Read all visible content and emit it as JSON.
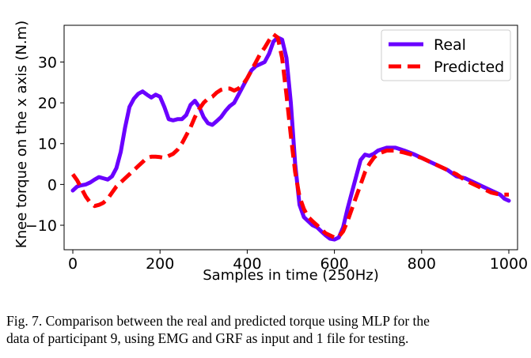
{
  "chart_data": {
    "type": "line",
    "title": "",
    "xlabel": "Samples in time (250Hz)",
    "ylabel": "Knee torque on the x axis (N.m)",
    "xlim": [
      -20,
      1020
    ],
    "ylim": [
      -16,
      39
    ],
    "xticks": [
      0,
      200,
      400,
      600,
      800,
      1000
    ],
    "yticks": [
      -10,
      0,
      10,
      20,
      30
    ],
    "legend_position": "top-right",
    "series": [
      {
        "name": "Real",
        "color": "#6a00ff",
        "style": "solid",
        "x": [
          0,
          10,
          20,
          30,
          40,
          50,
          60,
          70,
          80,
          90,
          100,
          110,
          120,
          130,
          140,
          150,
          160,
          170,
          180,
          190,
          200,
          210,
          220,
          230,
          240,
          250,
          260,
          270,
          280,
          290,
          300,
          310,
          320,
          330,
          340,
          350,
          360,
          370,
          380,
          390,
          400,
          410,
          420,
          430,
          440,
          450,
          460,
          470,
          480,
          490,
          500,
          510,
          520,
          530,
          540,
          550,
          560,
          570,
          580,
          590,
          600,
          610,
          620,
          630,
          640,
          650,
          660,
          670,
          680,
          690,
          700,
          720,
          740,
          760,
          780,
          800,
          820,
          840,
          860,
          880,
          900,
          920,
          940,
          960,
          980,
          990,
          1000
        ],
        "y": [
          -1.5,
          -0.5,
          -0.2,
          0,
          0.5,
          1.2,
          1.8,
          1.5,
          1.2,
          2,
          4,
          8,
          14,
          19,
          21,
          22.2,
          22.8,
          22,
          21.3,
          22,
          21.5,
          19,
          16,
          15.7,
          16,
          16,
          17,
          19.5,
          20.5,
          19,
          16.5,
          15,
          14.6,
          15.5,
          16.5,
          18,
          19.2,
          20,
          22,
          24,
          26,
          28,
          29,
          29.5,
          30,
          32,
          35,
          36,
          35.5,
          31,
          20,
          5,
          -5,
          -8,
          -9,
          -10,
          -10.5,
          -11.5,
          -12.5,
          -13.3,
          -13.5,
          -13,
          -10.5,
          -6,
          -2,
          2,
          6,
          7.3,
          7,
          7.5,
          8.3,
          9,
          9,
          8.3,
          7.5,
          6.5,
          5.5,
          4.5,
          3.5,
          2,
          1.5,
          0.5,
          -0.5,
          -1.5,
          -2.5,
          -3.5,
          -4
        ]
      },
      {
        "name": "Predicted",
        "color": "#ff0000",
        "style": "dashed",
        "x": [
          0,
          10,
          20,
          30,
          40,
          50,
          60,
          70,
          80,
          90,
          100,
          110,
          120,
          130,
          140,
          150,
          160,
          170,
          180,
          190,
          200,
          210,
          220,
          230,
          240,
          250,
          260,
          270,
          280,
          290,
          300,
          310,
          320,
          330,
          340,
          350,
          360,
          370,
          380,
          390,
          400,
          410,
          420,
          430,
          440,
          450,
          460,
          470,
          480,
          490,
          500,
          510,
          520,
          530,
          540,
          550,
          560,
          570,
          580,
          590,
          600,
          610,
          620,
          630,
          640,
          650,
          660,
          670,
          680,
          690,
          700,
          720,
          740,
          760,
          780,
          800,
          820,
          840,
          860,
          880,
          900,
          920,
          940,
          960,
          980,
          1000
        ],
        "y": [
          2.5,
          1,
          -1,
          -3,
          -4.5,
          -5.3,
          -5,
          -4.5,
          -3.5,
          -2,
          -0.5,
          0.5,
          1.5,
          2.5,
          3.5,
          4.5,
          5.5,
          6.5,
          6.8,
          6.8,
          6.7,
          6.5,
          7,
          7.5,
          8.5,
          10,
          12,
          14,
          16.5,
          18.5,
          20,
          21,
          21.5,
          22.5,
          23.2,
          23.5,
          23.5,
          23,
          23.5,
          24.5,
          26,
          28,
          30,
          32,
          33.5,
          35.3,
          36.8,
          36,
          31,
          22,
          12,
          3,
          -3,
          -6,
          -8,
          -9,
          -10,
          -11,
          -12,
          -12.5,
          -13,
          -12.8,
          -11.5,
          -9,
          -6,
          -3,
          0,
          3,
          5,
          6.5,
          7.5,
          8.3,
          8.3,
          7.8,
          7.2,
          6.5,
          5.5,
          4.5,
          3.5,
          2.5,
          1,
          0,
          -1,
          -2,
          -2.5,
          -2.5
        ]
      }
    ]
  },
  "caption": {
    "line1": "Fig. 7.  Comparison between the real and predicted torque using MLP for the",
    "line2": "data of participant 9, using EMG and GRF as input and 1 file for testing."
  }
}
